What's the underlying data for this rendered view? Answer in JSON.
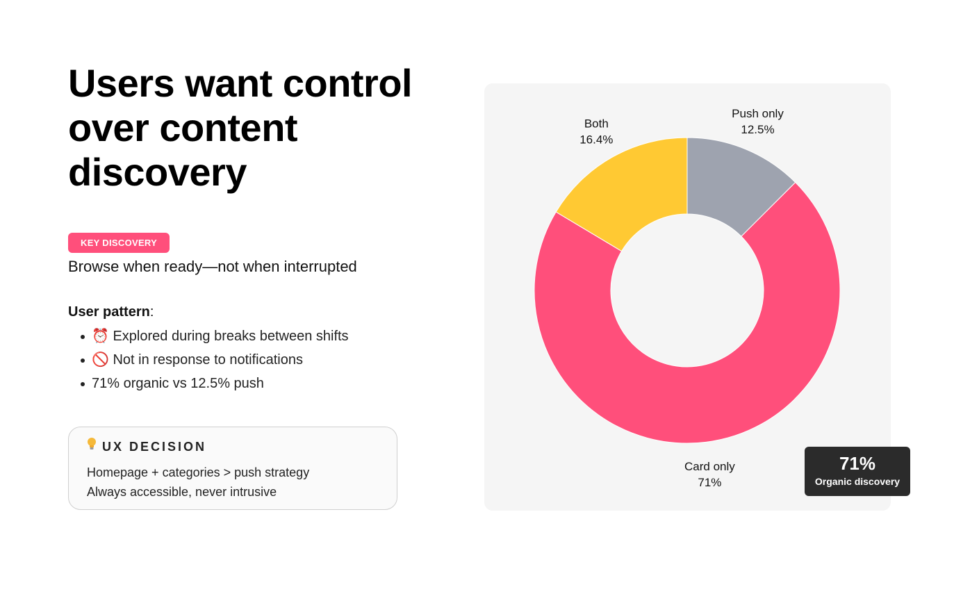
{
  "headline": {
    "line1": "Users want control",
    "line2": "over content",
    "line3": "discovery"
  },
  "badge": {
    "label": "KEY DISCOVERY",
    "color": "#ff4f7b"
  },
  "subtitle": "Browse when ready—not when interrupted",
  "pattern": {
    "heading": "User pattern",
    "colon": ":",
    "items": [
      {
        "icon": "alarm-clock-icon",
        "glyph": "⏰",
        "text": "Explored during breaks between shifts"
      },
      {
        "icon": "no-entry-icon",
        "glyph": "🚫",
        "text": "Not in response to notifications"
      },
      {
        "icon": "",
        "glyph": "",
        "text": "71% organic vs 12.5% push"
      }
    ]
  },
  "decision": {
    "icon": "light-bulb-icon",
    "title": "UX DECISION",
    "line1": "Homepage + categories > push strategy",
    "line2": "Always accessible, never intrusive"
  },
  "chart_data": {
    "type": "pie",
    "style": "donut",
    "slices": [
      {
        "label": "Push only",
        "value": 12.5,
        "value_label": "12.5%",
        "color": "#9ea3af"
      },
      {
        "label": "Card only",
        "value": 71,
        "value_label": "71%",
        "color": "#ff4f7b"
      },
      {
        "label": "Both",
        "value": 16.4,
        "value_label": "16.4%",
        "color": "#ffc933"
      }
    ],
    "title": "",
    "legend": "none",
    "background": "#f5f5f5"
  },
  "callout": {
    "value": "71%",
    "label": "Organic discovery"
  }
}
